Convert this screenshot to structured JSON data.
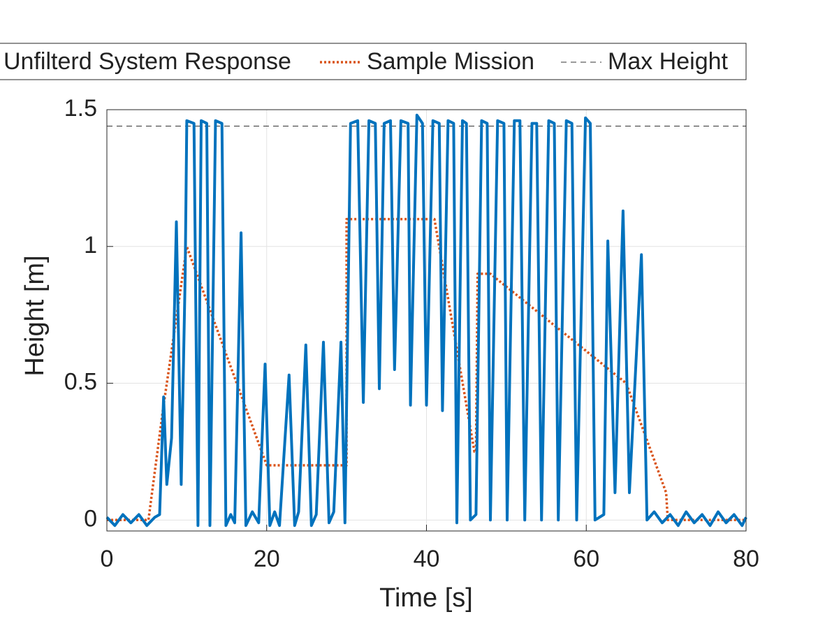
{
  "chart_data": {
    "type": "line",
    "xlabel": "Time [s]",
    "ylabel": "Height [m]",
    "xlim": [
      0,
      80
    ],
    "xticks": [
      0,
      20,
      40,
      60,
      80
    ],
    "ylim": [
      -0.04,
      1.5
    ],
    "yticks": [
      0,
      0.5,
      1,
      1.5
    ],
    "grid": true,
    "legend": "top",
    "series": [
      {
        "name": "Unfilterd System Response",
        "color": "#0072bd",
        "style": "solid",
        "x": [
          0,
          1,
          2,
          3,
          4,
          5,
          6,
          6.6,
          7.1,
          7.5,
          8.1,
          8.7,
          9.3,
          9.8,
          10.0,
          10.9,
          11.4,
          11.8,
          12.5,
          12.9,
          13.6,
          14.4,
          14.9,
          15.5,
          16.0,
          16.8,
          17.4,
          18.2,
          19.0,
          19.8,
          20.4,
          21.0,
          21.6,
          22.8,
          23.5,
          24.0,
          24.9,
          25.6,
          26.2,
          27.1,
          27.8,
          28.4,
          29.3,
          29.8,
          30.5,
          31.4,
          32.1,
          32.8,
          33.6,
          34.1,
          34.7,
          35.5,
          36.0,
          36.8,
          37.7,
          38.0,
          38.8,
          39.5,
          40.0,
          40.8,
          41.6,
          42.0,
          42.7,
          43.4,
          43.8,
          44.5,
          45.0,
          45.5,
          46.2,
          46.9,
          47.6,
          48.0,
          48.9,
          49.7,
          50.1,
          51.0,
          51.7,
          52.3,
          53.2,
          53.8,
          54.4,
          55.3,
          56.0,
          56.5,
          57.5,
          58.2,
          58.8,
          59.9,
          60.5,
          61.1,
          62.2,
          62.7,
          63.6,
          64.6,
          65.4,
          66.9,
          67.6,
          68.5,
          69.5,
          70.5,
          71.5,
          72.5,
          73.5,
          74.5,
          75.5,
          76.5,
          77.5,
          78.5,
          79.5,
          80
        ],
        "values": [
          0.01,
          -0.02,
          0.02,
          -0.01,
          0.02,
          -0.02,
          0.01,
          0.02,
          0.45,
          0.13,
          0.3,
          1.09,
          0.13,
          0.9,
          1.46,
          1.45,
          -0.02,
          1.46,
          1.45,
          -0.02,
          1.46,
          1.45,
          -0.02,
          0.02,
          -0.01,
          1.05,
          -0.02,
          0.03,
          -0.01,
          0.57,
          -0.02,
          0.03,
          -0.02,
          0.53,
          -0.02,
          0.03,
          0.64,
          -0.02,
          0.02,
          0.65,
          -0.01,
          0.03,
          0.65,
          -0.01,
          1.45,
          1.46,
          0.43,
          1.46,
          1.45,
          0.48,
          1.45,
          1.46,
          0.55,
          1.46,
          1.45,
          0.42,
          1.48,
          1.45,
          0.42,
          1.46,
          1.45,
          0.4,
          1.46,
          1.45,
          -0.01,
          1.46,
          1.45,
          0.0,
          0.02,
          1.46,
          1.45,
          0.0,
          1.46,
          1.45,
          0.0,
          1.46,
          1.46,
          0.0,
          1.45,
          1.45,
          0.0,
          1.46,
          1.45,
          0.0,
          1.46,
          1.45,
          0.0,
          1.47,
          1.45,
          0.0,
          0.02,
          1.02,
          0.1,
          1.13,
          0.1,
          0.97,
          0.0,
          0.03,
          -0.01,
          0.02,
          -0.02,
          0.03,
          -0.01,
          0.02,
          -0.02,
          0.03,
          -0.01,
          0.02,
          -0.02,
          0.01
        ]
      },
      {
        "name": "Sample Mission",
        "color": "#d95319",
        "style": "dotted",
        "x": [
          0,
          5.2,
          7,
          10,
          20,
          30,
          30,
          41,
          46,
          46.2,
          46.4,
          48,
          65,
          70,
          70.2,
          80
        ],
        "values": [
          0,
          0,
          0.4,
          1,
          0.2,
          0.2,
          1.1,
          1.1,
          0.25,
          0.25,
          0.9,
          0.9,
          0.5,
          0.1,
          0,
          0
        ]
      },
      {
        "name": "Max Height",
        "color": "#333333",
        "style": "dashed",
        "x": [
          0,
          80
        ],
        "values": [
          1.44,
          1.44
        ]
      }
    ]
  }
}
